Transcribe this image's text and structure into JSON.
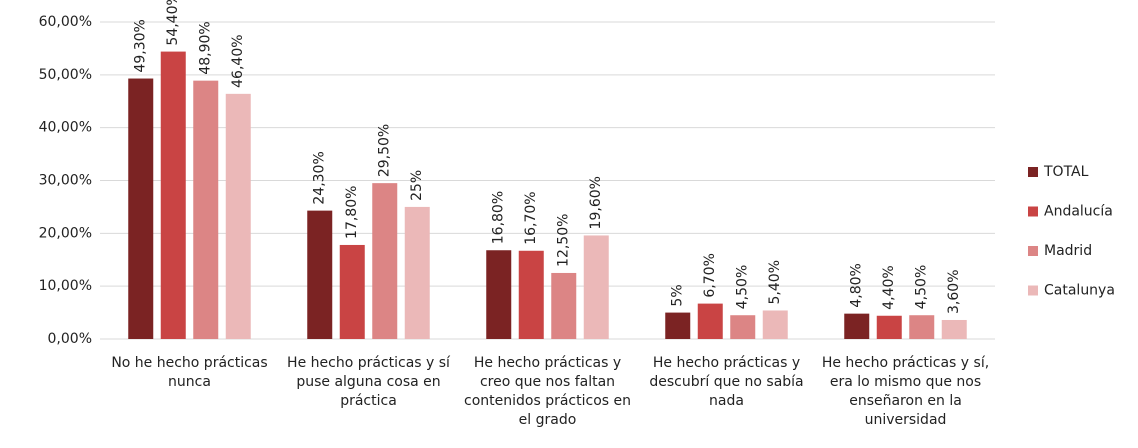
{
  "chart_data": {
    "type": "bar",
    "categories": [
      "No he hecho prácticas nunca",
      "He hecho prácticas y sí puse alguna cosa en práctica",
      "He hecho prácticas y creo que nos faltan contenidos prácticos en el grado",
      "He hecho prácticas y descubrí que no sabía nada",
      "He hecho prácticas y sí, era lo mismo que nos enseñaron en la universidad"
    ],
    "series": [
      {
        "name": "TOTAL",
        "color": "#7b2323",
        "values": [
          49.3,
          24.3,
          16.8,
          5,
          4.8
        ],
        "value_labels": [
          "49,30%",
          "24,30%",
          "16,80%",
          "5%",
          "4,80%"
        ]
      },
      {
        "name": "Andalucía",
        "color": "#c94444",
        "values": [
          54.4,
          17.8,
          16.7,
          6.7,
          4.4
        ],
        "value_labels": [
          "54,40%",
          "17,80%",
          "16,70%",
          "6,70%",
          "4,40%"
        ]
      },
      {
        "name": "Madrid",
        "color": "#dc8585",
        "values": [
          48.9,
          29.5,
          12.5,
          4.5,
          4.5
        ],
        "value_labels": [
          "48,90%",
          "29,50%",
          "12,50%",
          "4,50%",
          "4,50%"
        ]
      },
      {
        "name": "Catalunya",
        "color": "#ebb8b8",
        "values": [
          46.4,
          25,
          19.6,
          5.4,
          3.6
        ],
        "value_labels": [
          "46,40%",
          "25%",
          "19,60%",
          "5,40%",
          "3,60%"
        ]
      }
    ],
    "ylim": [
      0,
      60
    ],
    "yticks": [
      {
        "value": 0,
        "label": "0,00%"
      },
      {
        "value": 10,
        "label": "10,00%"
      },
      {
        "value": 20,
        "label": "20,00%"
      },
      {
        "value": 30,
        "label": "30,00%"
      },
      {
        "value": 40,
        "label": "40,00%"
      },
      {
        "value": 50,
        "label": "50,00%"
      },
      {
        "value": 60,
        "label": "60,00%"
      }
    ],
    "grid": true,
    "legend": "right"
  }
}
